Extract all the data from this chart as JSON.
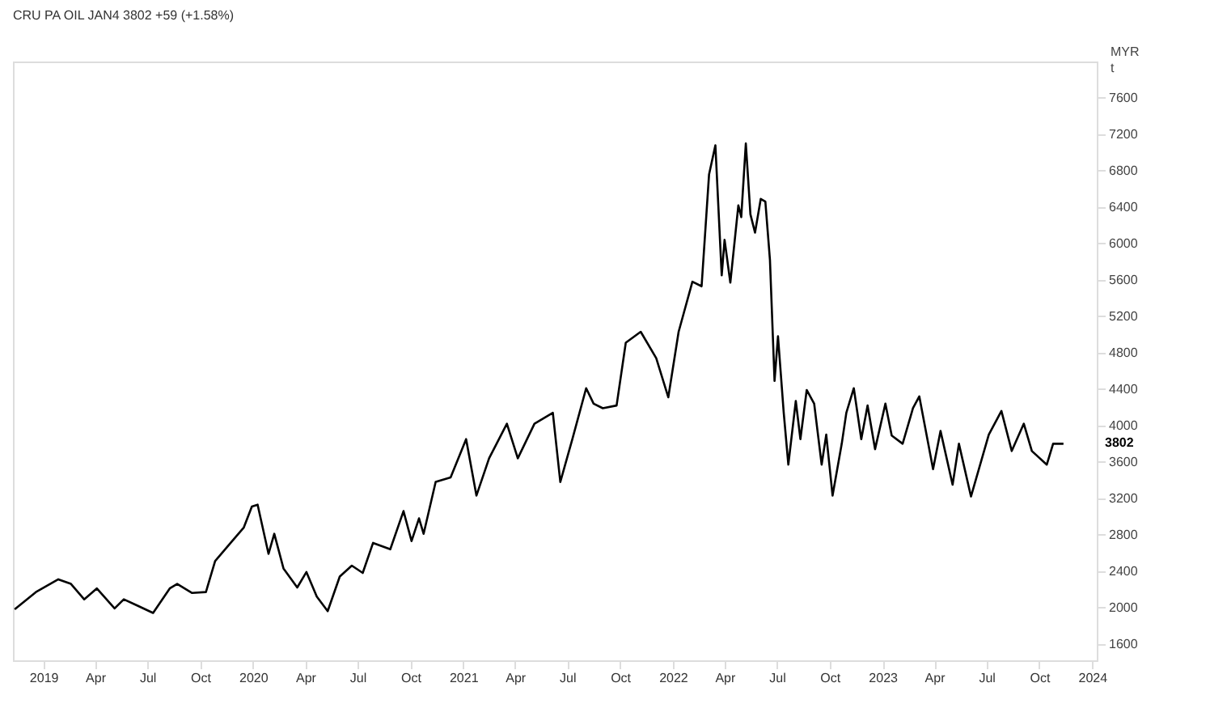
{
  "chart_data": {
    "type": "line",
    "title": "CRU PA OIL JAN4 3802 +59 (+1.58%)",
    "ylabel": "MYR\nt",
    "x": [
      "2018-11-12",
      "2018-12-19",
      "2019-01-27",
      "2019-02-18",
      "2019-03-13",
      "2019-04-04",
      "2019-05-05",
      "2019-05-21",
      "2019-06-14",
      "2019-07-11",
      "2019-08-09",
      "2019-08-22",
      "2019-09-17",
      "2019-10-11",
      "2019-10-27",
      "2019-11-23",
      "2019-12-16",
      "2019-12-30",
      "2020-01-09",
      "2020-01-28",
      "2020-02-07",
      "2020-02-23",
      "2020-03-18",
      "2020-04-03",
      "2020-04-21",
      "2020-05-10",
      "2020-05-31",
      "2020-06-21",
      "2020-07-10",
      "2020-07-28",
      "2020-08-27",
      "2020-09-19",
      "2020-10-03",
      "2020-10-16",
      "2020-10-24",
      "2020-11-14",
      "2020-12-10",
      "2021-01-06",
      "2021-01-24",
      "2021-02-15",
      "2021-03-18",
      "2021-04-06",
      "2021-05-05",
      "2021-06-06",
      "2021-06-19",
      "2021-07-10",
      "2021-08-03",
      "2021-08-16",
      "2021-09-01",
      "2021-09-25",
      "2021-10-11",
      "2021-11-06",
      "2021-12-03",
      "2021-12-24",
      "2022-01-11",
      "2022-02-04",
      "2022-02-20",
      "2022-03-05",
      "2022-03-16",
      "2022-03-27",
      "2022-04-01",
      "2022-04-11",
      "2022-04-25",
      "2022-04-30",
      "2022-05-08",
      "2022-05-16",
      "2022-05-24",
      "2022-06-03",
      "2022-06-11",
      "2022-06-19",
      "2022-06-27",
      "2022-07-03",
      "2022-07-13",
      "2022-07-21",
      "2022-08-03",
      "2022-08-11",
      "2022-08-22",
      "2022-09-04",
      "2022-09-17",
      "2022-09-25",
      "2022-10-06",
      "2022-10-22",
      "2022-10-30",
      "2022-11-12",
      "2022-11-25",
      "2022-12-06",
      "2022-12-19",
      "2023-01-06",
      "2023-01-17",
      "2023-02-05",
      "2023-02-23",
      "2023-03-06",
      "2023-03-30",
      "2023-04-12",
      "2023-05-03",
      "2023-05-14",
      "2023-06-04",
      "2023-07-05",
      "2023-07-27",
      "2023-08-14",
      "2023-09-04",
      "2023-09-18",
      "2023-10-14",
      "2023-10-25",
      "2023-11-12"
    ],
    "series": [
      {
        "color": "#000000",
        "values": [
          1980,
          2170,
          2310,
          2260,
          2090,
          2210,
          1990,
          2090,
          2020,
          1940,
          2210,
          2260,
          2160,
          2170,
          2510,
          2710,
          2880,
          3110,
          3130,
          2590,
          2810,
          2430,
          2220,
          2390,
          2120,
          1960,
          2340,
          2460,
          2380,
          2710,
          2640,
          3060,
          2730,
          2980,
          2810,
          3380,
          3430,
          3850,
          3230,
          3640,
          4020,
          3640,
          4020,
          4140,
          3380,
          3850,
          4410,
          4240,
          4190,
          4220,
          4910,
          5030,
          4740,
          4310,
          5030,
          5580,
          5530,
          6760,
          7080,
          5650,
          6040,
          5570,
          6420,
          6290,
          7100,
          6320,
          6120,
          6490,
          6460,
          5820,
          4490,
          4980,
          4140,
          3570,
          4270,
          3850,
          4390,
          4240,
          3570,
          3900,
          3230,
          3800,
          4140,
          4410,
          3850,
          4220,
          3740,
          4240,
          3890,
          3800,
          4190,
          4320,
          3520,
          3940,
          3350,
          3800,
          3220,
          3900,
          4160,
          3720,
          4020,
          3720,
          3570,
          3800,
          3800
        ]
      }
    ],
    "xlim": [
      "2018-11-09",
      "2024-01-09"
    ],
    "xticks": [
      {
        "value": "2019-01-01",
        "label": "2019"
      },
      {
        "value": "2019-04-01",
        "label": "Apr"
      },
      {
        "value": "2019-07-01",
        "label": "Jul"
      },
      {
        "value": "2019-10-01",
        "label": "Oct"
      },
      {
        "value": "2020-01-01",
        "label": "2020"
      },
      {
        "value": "2020-04-01",
        "label": "Apr"
      },
      {
        "value": "2020-07-01",
        "label": "Jul"
      },
      {
        "value": "2020-10-01",
        "label": "Oct"
      },
      {
        "value": "2021-01-01",
        "label": "2021"
      },
      {
        "value": "2021-04-01",
        "label": "Apr"
      },
      {
        "value": "2021-07-01",
        "label": "Jul"
      },
      {
        "value": "2021-10-01",
        "label": "Oct"
      },
      {
        "value": "2022-01-01",
        "label": "2022"
      },
      {
        "value": "2022-04-01",
        "label": "Apr"
      },
      {
        "value": "2022-07-01",
        "label": "Jul"
      },
      {
        "value": "2022-10-01",
        "label": "Oct"
      },
      {
        "value": "2023-01-01",
        "label": "2023"
      },
      {
        "value": "2023-04-01",
        "label": "Apr"
      },
      {
        "value": "2023-07-01",
        "label": "Jul"
      },
      {
        "value": "2023-10-01",
        "label": "Oct"
      },
      {
        "value": "2024-01-01",
        "label": "2024"
      }
    ],
    "ylim": [
      1420,
      8000
    ],
    "yticks": [
      1600,
      2000,
      2400,
      2800,
      3200,
      3600,
      4000,
      4400,
      4800,
      5200,
      5600,
      6000,
      6400,
      6800,
      7200,
      7600
    ],
    "grid": false,
    "line_style": "solid",
    "marker": "none",
    "annotations": [
      "3802"
    ]
  }
}
